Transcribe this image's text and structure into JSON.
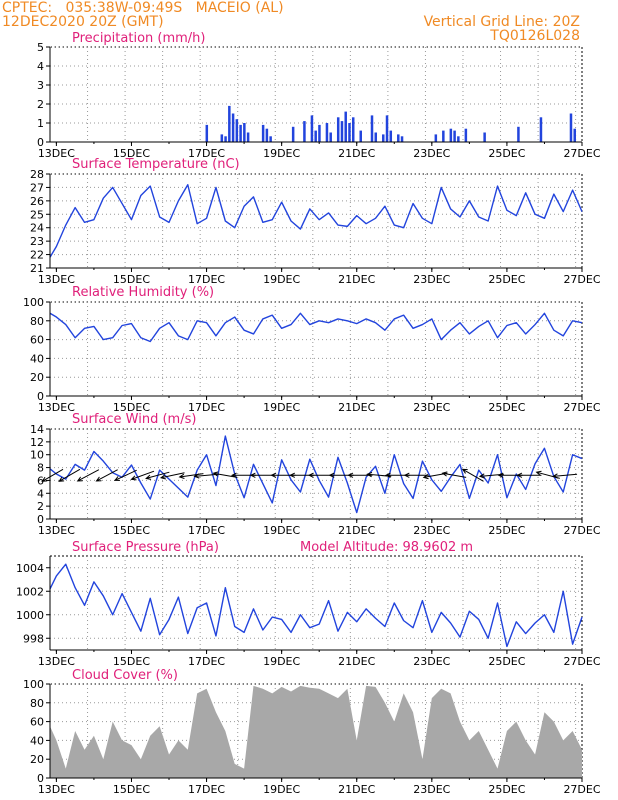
{
  "header": {
    "line1_left": "CPTEC:   035:38W-09:49S   MACEIO (AL)",
    "line2_left": "12DEC2020 20Z (GMT)",
    "line1_right": "Vertical Grid Line: 20Z",
    "line2_right": "TQ0126L028"
  },
  "colors": {
    "header": "#f08a24",
    "panel_title": "#e0207a",
    "line": "#2244dd",
    "bars": "#2244dd",
    "cloud": "#a8a8a8",
    "axis": "#000000"
  },
  "x_axis": {
    "start": "12DEC2020 20Z",
    "end": "27DEC2020 00Z",
    "tick_labels": [
      "13DEC",
      "15DEC",
      "17DEC",
      "19DEC",
      "21DEC",
      "23DEC",
      "25DEC",
      "27DEC"
    ],
    "tick_days": [
      13,
      15,
      17,
      19,
      21,
      23,
      25,
      27
    ]
  },
  "chart_data": [
    {
      "type": "bar",
      "title": "Precipitation (mm/h)",
      "ylim": [
        0,
        5
      ],
      "yticks": [
        0,
        1,
        2,
        3,
        4,
        5
      ],
      "x": [
        17.0,
        17.4,
        17.5,
        17.6,
        17.7,
        17.8,
        17.9,
        18.0,
        18.1,
        18.5,
        18.6,
        18.7,
        19.3,
        19.6,
        19.8,
        19.9,
        20.0,
        20.2,
        20.3,
        20.5,
        20.6,
        20.7,
        20.8,
        20.9,
        21.1,
        21.4,
        21.5,
        21.7,
        21.8,
        21.9,
        22.1,
        22.2,
        23.1,
        23.3,
        23.5,
        23.6,
        23.7,
        23.9,
        24.4,
        25.3,
        25.9,
        26.7,
        26.8
      ],
      "values": [
        0.9,
        0.4,
        0.3,
        1.9,
        1.5,
        1.2,
        0.9,
        1.0,
        0.5,
        0.9,
        0.7,
        0.3,
        0.8,
        1.1,
        1.4,
        0.6,
        0.9,
        1.0,
        0.5,
        1.3,
        1.1,
        1.6,
        1.0,
        1.3,
        0.6,
        1.4,
        0.5,
        0.4,
        1.4,
        0.6,
        0.4,
        0.3,
        0.4,
        0.6,
        0.7,
        0.6,
        0.3,
        0.7,
        0.5,
        0.8,
        1.3,
        1.5,
        0.7
      ]
    },
    {
      "type": "line",
      "title": "Surface Temperature (nC)",
      "ylim": [
        21,
        28
      ],
      "yticks": [
        21,
        22,
        23,
        24,
        25,
        26,
        27,
        28
      ],
      "x": [
        12.83,
        13.0,
        13.25,
        13.5,
        13.75,
        14.0,
        14.25,
        14.5,
        14.75,
        15.0,
        15.25,
        15.5,
        15.75,
        16.0,
        16.25,
        16.5,
        16.75,
        17.0,
        17.25,
        17.5,
        17.75,
        18.0,
        18.25,
        18.5,
        18.75,
        19.0,
        19.25,
        19.5,
        19.75,
        20.0,
        20.25,
        20.5,
        20.75,
        21.0,
        21.25,
        21.5,
        21.75,
        22.0,
        22.25,
        22.5,
        22.75,
        23.0,
        23.25,
        23.5,
        23.75,
        24.0,
        24.25,
        24.5,
        24.75,
        25.0,
        25.25,
        25.5,
        25.75,
        26.0,
        26.25,
        26.5,
        26.75,
        27.0
      ],
      "values": [
        21.8,
        22.6,
        24.2,
        25.5,
        24.4,
        24.6,
        26.2,
        27.0,
        25.8,
        24.6,
        26.4,
        27.1,
        24.8,
        24.4,
        26.0,
        27.2,
        24.3,
        24.7,
        27.0,
        24.5,
        24.0,
        25.6,
        26.3,
        24.4,
        24.6,
        25.9,
        24.5,
        23.9,
        25.4,
        24.6,
        25.1,
        24.2,
        24.1,
        24.9,
        24.3,
        24.7,
        25.6,
        24.2,
        24.0,
        25.8,
        24.7,
        24.3,
        27.0,
        25.4,
        24.8,
        26.0,
        24.8,
        24.5,
        27.1,
        25.3,
        24.9,
        26.6,
        25.0,
        24.7,
        26.5,
        25.2,
        26.8,
        25.2
      ]
    },
    {
      "type": "line",
      "title": "Relative Humidity (%)",
      "ylim": [
        0,
        100
      ],
      "yticks": [
        0,
        20,
        40,
        60,
        80,
        100
      ],
      "x": [
        12.83,
        13.0,
        13.25,
        13.5,
        13.75,
        14.0,
        14.25,
        14.5,
        14.75,
        15.0,
        15.25,
        15.5,
        15.75,
        16.0,
        16.25,
        16.5,
        16.75,
        17.0,
        17.25,
        17.5,
        17.75,
        18.0,
        18.25,
        18.5,
        18.75,
        19.0,
        19.25,
        19.5,
        19.75,
        20.0,
        20.25,
        20.5,
        20.75,
        21.0,
        21.25,
        21.5,
        21.75,
        22.0,
        22.25,
        22.5,
        22.75,
        23.0,
        23.25,
        23.5,
        23.75,
        24.0,
        24.25,
        24.5,
        24.75,
        25.0,
        25.25,
        25.5,
        25.75,
        26.0,
        26.25,
        26.5,
        26.75,
        27.0
      ],
      "values": [
        88,
        84,
        76,
        62,
        72,
        74,
        60,
        62,
        75,
        77,
        62,
        58,
        72,
        78,
        64,
        60,
        80,
        78,
        64,
        78,
        84,
        70,
        66,
        82,
        86,
        72,
        76,
        88,
        76,
        80,
        78,
        82,
        80,
        77,
        82,
        78,
        70,
        82,
        86,
        72,
        76,
        82,
        60,
        70,
        78,
        66,
        74,
        80,
        62,
        75,
        78,
        66,
        76,
        88,
        70,
        64,
        80,
        78
      ]
    },
    {
      "type": "line",
      "title": "Surface Wind (m/s)",
      "ylim": [
        0,
        14
      ],
      "yticks": [
        0,
        2,
        4,
        6,
        8,
        10,
        12,
        14
      ],
      "x": [
        12.83,
        13.0,
        13.25,
        13.5,
        13.75,
        14.0,
        14.25,
        14.5,
        14.75,
        15.0,
        15.25,
        15.5,
        15.75,
        16.0,
        16.25,
        16.5,
        16.75,
        17.0,
        17.25,
        17.5,
        17.75,
        18.0,
        18.25,
        18.5,
        18.75,
        19.0,
        19.25,
        19.5,
        19.75,
        20.0,
        20.25,
        20.5,
        20.75,
        21.0,
        21.25,
        21.5,
        21.75,
        22.0,
        22.25,
        22.5,
        22.75,
        23.0,
        23.25,
        23.5,
        23.75,
        24.0,
        24.25,
        24.5,
        24.75,
        25.0,
        25.25,
        25.5,
        25.75,
        26.0,
        26.25,
        26.5,
        26.75,
        27.0
      ],
      "values": [
        7.8,
        7.0,
        6.2,
        8.5,
        7.6,
        10.5,
        9.0,
        7.2,
        6.5,
        8.4,
        5.6,
        3.1,
        7.6,
        6.2,
        4.8,
        3.4,
        7.6,
        10.0,
        5.2,
        12.9,
        7.0,
        3.3,
        8.5,
        5.5,
        2.5,
        9.2,
        6.1,
        4.2,
        9.3,
        6.0,
        3.4,
        9.6,
        5.6,
        1.0,
        6.5,
        8.2,
        4.0,
        10.0,
        5.5,
        3.2,
        9.0,
        6.1,
        4.3,
        6.5,
        8.5,
        3.2,
        7.6,
        5.6,
        10.0,
        3.3,
        7.0,
        4.6,
        8.6,
        11.0,
        6.6,
        4.2,
        10.0,
        9.4
      ],
      "arrows": [
        {
          "x": 12.9,
          "dir_deg": 30
        },
        {
          "x": 13.35,
          "dir_deg": 30
        },
        {
          "x": 13.85,
          "dir_deg": 28
        },
        {
          "x": 14.35,
          "dir_deg": 28
        },
        {
          "x": 14.85,
          "dir_deg": 25
        },
        {
          "x": 15.3,
          "dir_deg": 20
        },
        {
          "x": 15.7,
          "dir_deg": 15
        },
        {
          "x": 16.1,
          "dir_deg": 12
        },
        {
          "x": 16.6,
          "dir_deg": 8
        },
        {
          "x": 17.0,
          "dir_deg": 5
        },
        {
          "x": 17.5,
          "dir_deg": -10
        },
        {
          "x": 18.0,
          "dir_deg": 0
        },
        {
          "x": 18.5,
          "dir_deg": 0
        },
        {
          "x": 19.05,
          "dir_deg": 0
        },
        {
          "x": 19.55,
          "dir_deg": 0
        },
        {
          "x": 20.05,
          "dir_deg": 0
        },
        {
          "x": 20.6,
          "dir_deg": 0
        },
        {
          "x": 21.1,
          "dir_deg": 0
        },
        {
          "x": 21.6,
          "dir_deg": -5
        },
        {
          "x": 22.1,
          "dir_deg": 0
        },
        {
          "x": 22.6,
          "dir_deg": 0
        },
        {
          "x": 23.1,
          "dir_deg": 10
        },
        {
          "x": 23.6,
          "dir_deg": -10
        },
        {
          "x": 24.1,
          "dir_deg": -30
        },
        {
          "x": 24.6,
          "dir_deg": 5
        },
        {
          "x": 25.1,
          "dir_deg": 0
        },
        {
          "x": 25.6,
          "dir_deg": 0
        },
        {
          "x": 26.1,
          "dir_deg": -15
        },
        {
          "x": 26.55,
          "dir_deg": 5
        }
      ]
    },
    {
      "type": "line",
      "title": "Surface Pressure (hPa)",
      "subtitle": "Model Altitude: 98.9602 m",
      "ylim": [
        997,
        1005
      ],
      "yticks": [
        998,
        1000,
        1002,
        1004
      ],
      "x": [
        12.83,
        13.0,
        13.25,
        13.5,
        13.75,
        14.0,
        14.25,
        14.5,
        14.75,
        15.0,
        15.25,
        15.5,
        15.75,
        16.0,
        16.25,
        16.5,
        16.75,
        17.0,
        17.25,
        17.5,
        17.75,
        18.0,
        18.25,
        18.5,
        18.75,
        19.0,
        19.25,
        19.5,
        19.75,
        20.0,
        20.25,
        20.5,
        20.75,
        21.0,
        21.25,
        21.5,
        21.75,
        22.0,
        22.25,
        22.5,
        22.75,
        23.0,
        23.25,
        23.5,
        23.75,
        24.0,
        24.25,
        24.5,
        24.75,
        25.0,
        25.25,
        25.5,
        25.75,
        26.0,
        26.25,
        26.5,
        26.75,
        27.0
      ],
      "values": [
        1002.2,
        1003.3,
        1004.3,
        1002.3,
        1000.8,
        1002.8,
        1001.6,
        1000.0,
        1001.8,
        1000.2,
        998.6,
        1001.4,
        998.3,
        999.6,
        1001.5,
        998.4,
        1000.6,
        1001.0,
        998.2,
        1002.3,
        999.0,
        998.5,
        1000.5,
        998.7,
        999.8,
        999.6,
        998.5,
        1000.0,
        998.9,
        999.2,
        1001.2,
        998.6,
        1000.2,
        999.4,
        1000.5,
        999.7,
        999.0,
        1001.0,
        999.5,
        998.9,
        1001.2,
        998.5,
        1000.2,
        999.3,
        998.1,
        1000.3,
        999.6,
        998.0,
        1001.0,
        997.3,
        999.4,
        998.4,
        999.3,
        1000.0,
        998.5,
        1002.0,
        997.5,
        999.8
      ]
    },
    {
      "type": "area",
      "title": "Cloud Cover (%)",
      "ylim": [
        0,
        100
      ],
      "yticks": [
        0,
        20,
        40,
        60,
        80,
        100
      ],
      "x": [
        12.83,
        13.0,
        13.25,
        13.5,
        13.75,
        14.0,
        14.25,
        14.5,
        14.75,
        15.0,
        15.25,
        15.5,
        15.75,
        16.0,
        16.25,
        16.5,
        16.75,
        17.0,
        17.25,
        17.5,
        17.75,
        18.0,
        18.25,
        18.5,
        18.75,
        19.0,
        19.25,
        19.5,
        19.75,
        20.0,
        20.25,
        20.5,
        20.75,
        21.0,
        21.25,
        21.5,
        21.75,
        22.0,
        22.25,
        22.5,
        22.75,
        23.0,
        23.25,
        23.5,
        23.75,
        24.0,
        24.25,
        24.5,
        24.75,
        25.0,
        25.25,
        25.5,
        25.75,
        26.0,
        26.25,
        26.5,
        26.75,
        27.0
      ],
      "values": [
        55,
        40,
        10,
        50,
        30,
        45,
        20,
        60,
        40,
        35,
        20,
        45,
        55,
        25,
        40,
        30,
        90,
        95,
        70,
        50,
        15,
        10,
        98,
        95,
        90,
        97,
        92,
        98,
        96,
        95,
        90,
        85,
        95,
        40,
        98,
        97,
        80,
        60,
        90,
        70,
        20,
        85,
        95,
        90,
        60,
        40,
        50,
        30,
        10,
        50,
        60,
        40,
        25,
        70,
        60,
        40,
        50,
        30
      ]
    }
  ]
}
